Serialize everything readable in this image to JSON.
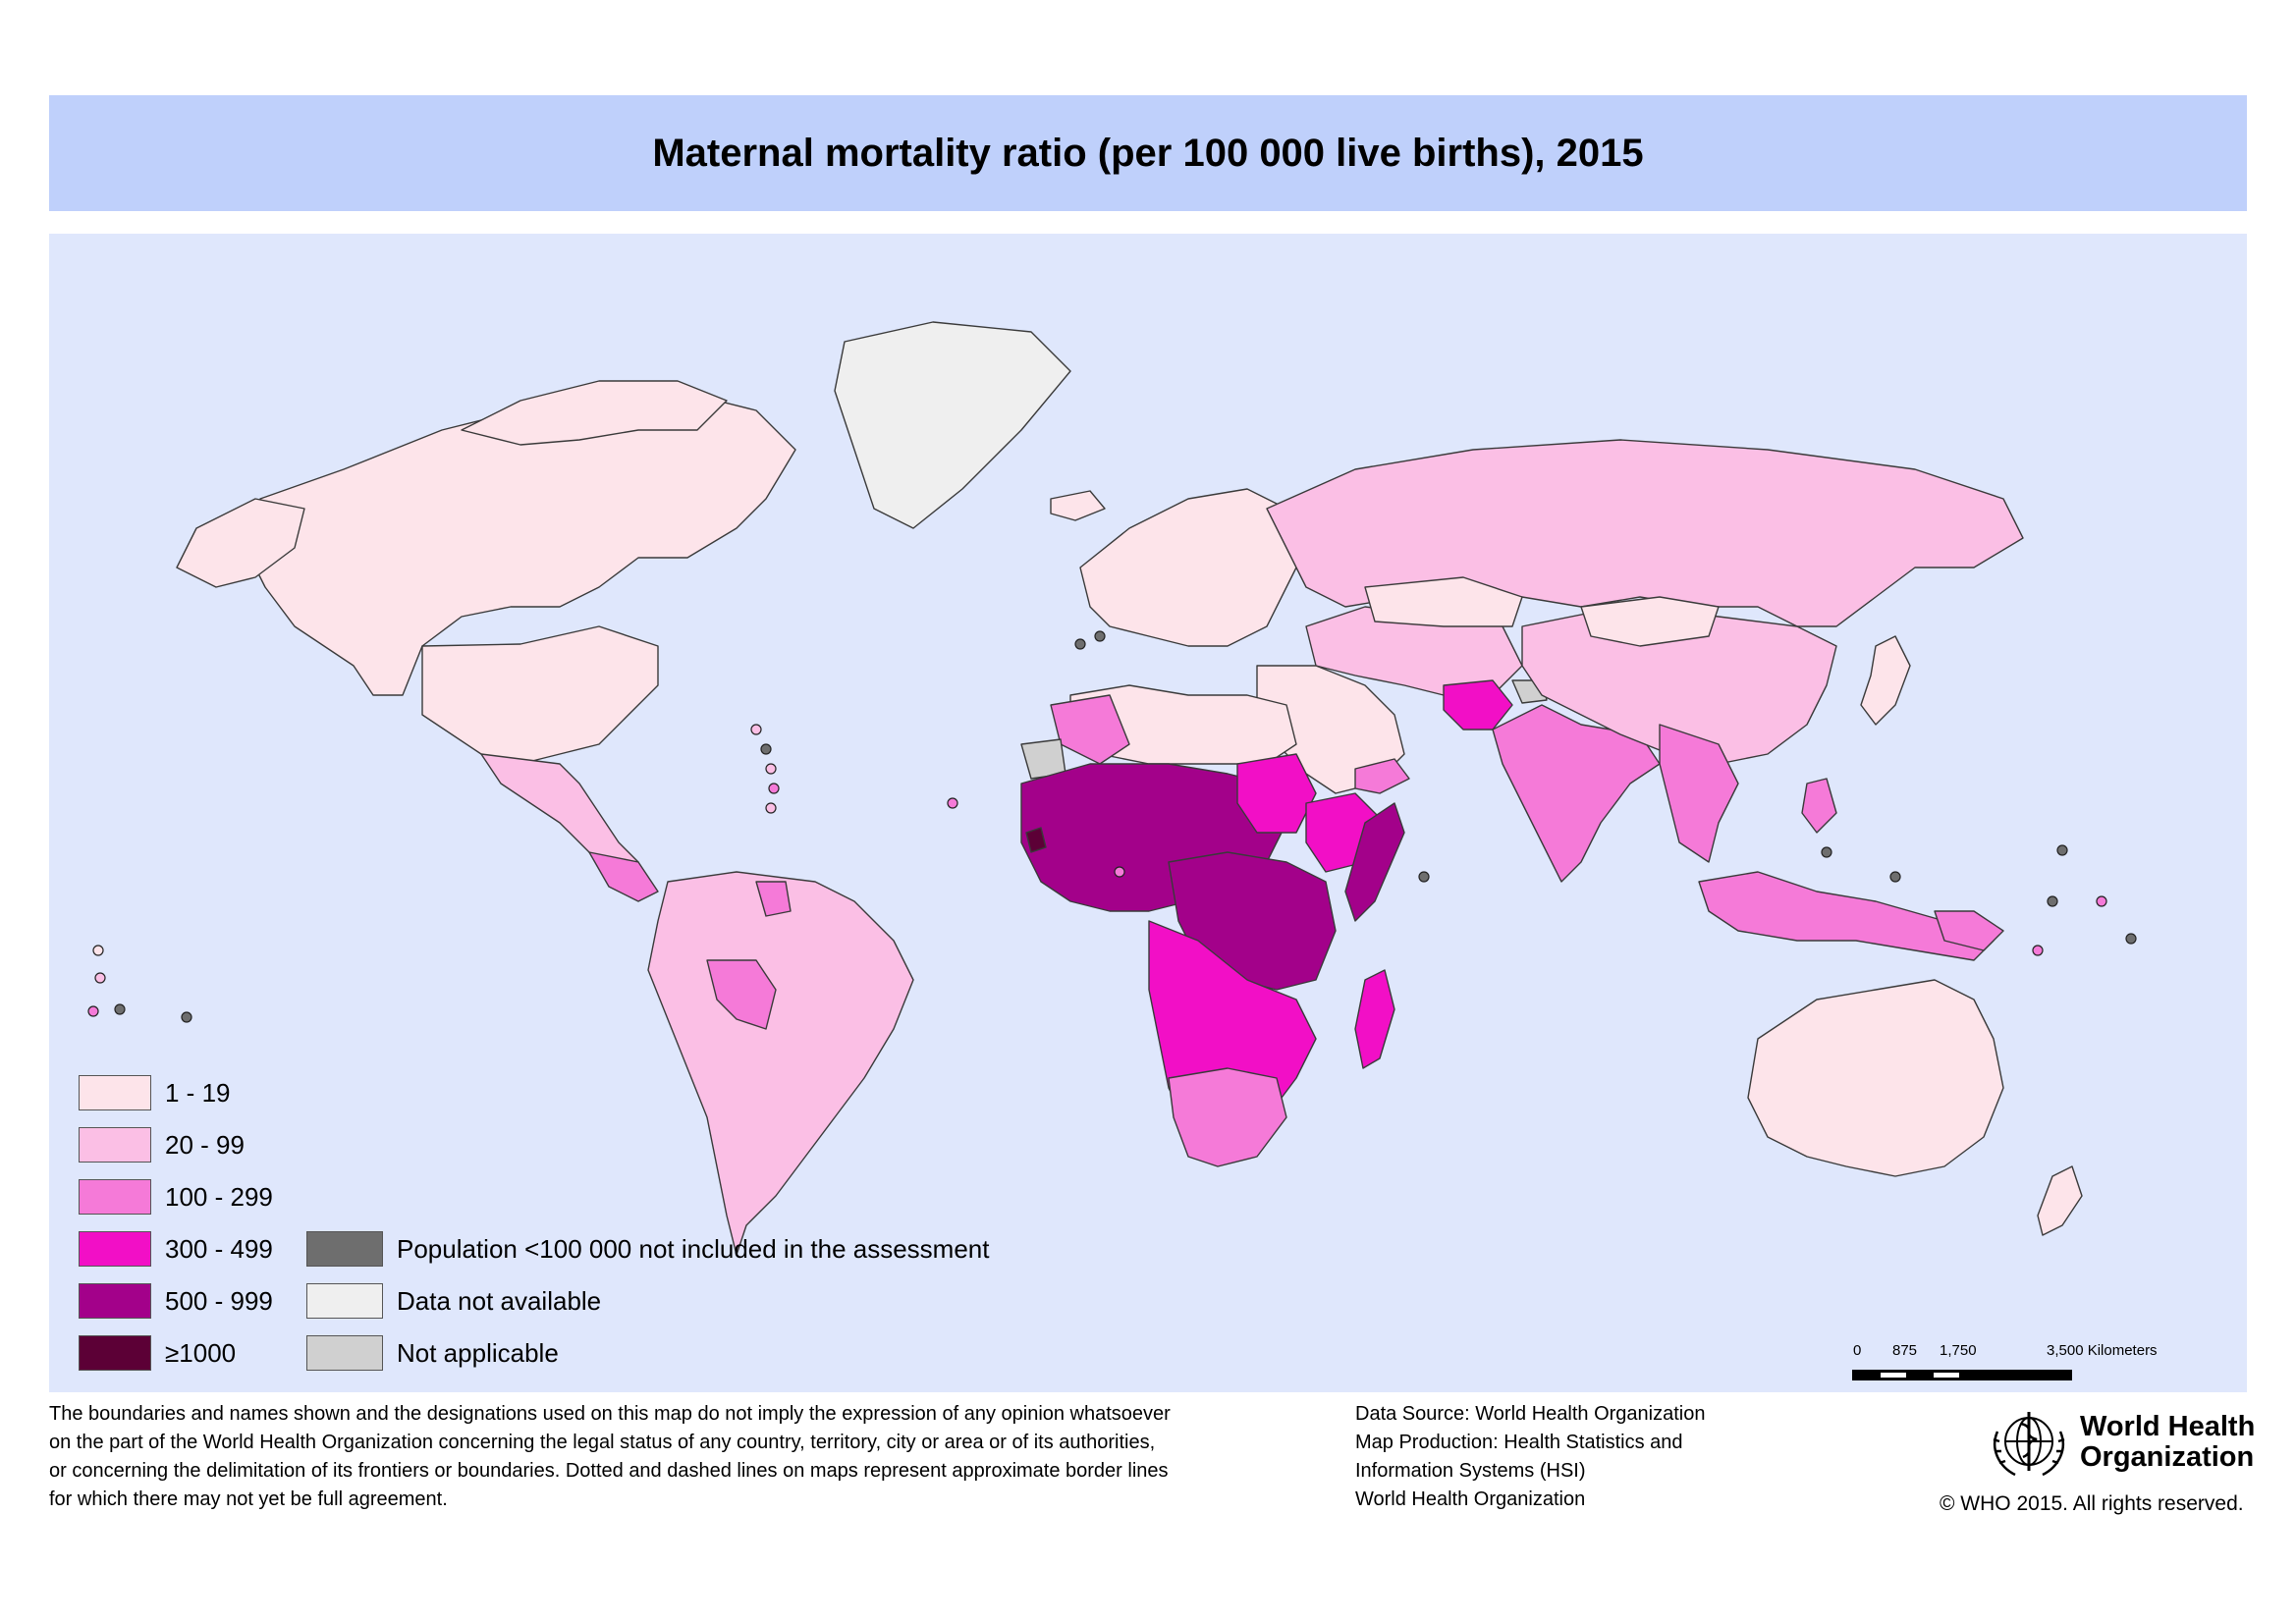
{
  "title": "Maternal mortality ratio (per 100 000 live births), 2015",
  "legend": {
    "classes": [
      {
        "label": "1 - 19",
        "color": "#fde4ea"
      },
      {
        "label": "20 - 99",
        "color": "#fbbfe5"
      },
      {
        "label": "100 - 299",
        "color": "#f57ad8"
      },
      {
        "label": "300 - 499",
        "color": "#f20fc6"
      },
      {
        "label": "500 - 999",
        "color": "#a3018a"
      },
      {
        "label": "≥1000",
        "color": "#5c0036"
      }
    ],
    "special": [
      {
        "label": "Population <100 000 not included in the assessment",
        "color": "#6e6e6e"
      },
      {
        "label": "Data not available",
        "color": "#efefef"
      },
      {
        "label": "Not applicable",
        "color": "#d0d0d0"
      }
    ]
  },
  "scalebar": {
    "ticks": [
      "0",
      "875",
      "1,750",
      "3,500 Kilometers"
    ]
  },
  "disclaimer": [
    "The boundaries and names shown and the designations used on this map do not imply the expression of any opinion whatsoever",
    "on the part of the World Health Organization concerning the legal status of any country, territory, city or area or of its authorities,",
    "or concerning the delimitation of its frontiers or boundaries. Dotted and dashed lines on maps represent approximate border lines",
    "for which there may not yet be full agreement."
  ],
  "source": [
    "Data Source: World Health Organization",
    "Map Production: Health Statistics and",
    "Information Systems (HSI)",
    "World Health Organization"
  ],
  "who": {
    "name_line1": "World Health",
    "name_line2": "Organization",
    "copyright": "© WHO 2015. All rights reserved."
  }
}
